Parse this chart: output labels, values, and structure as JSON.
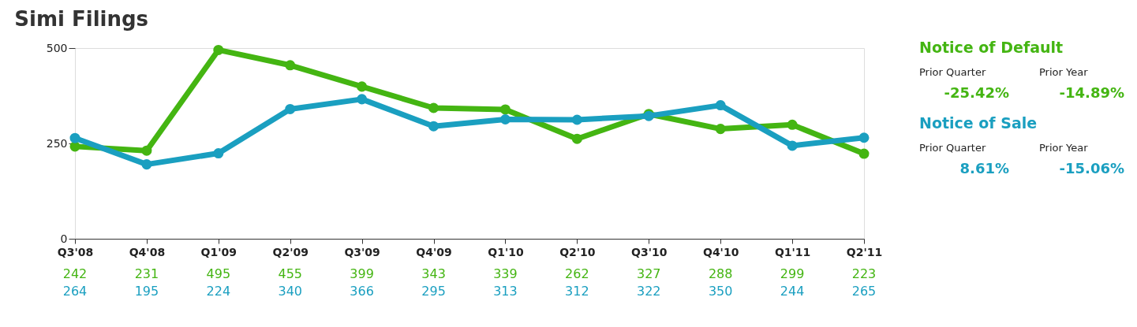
{
  "chart_data": {
    "type": "line",
    "title": "Simi Filings",
    "categories": [
      "Q3'08",
      "Q4'08",
      "Q1'09",
      "Q2'09",
      "Q3'09",
      "Q4'09",
      "Q1'10",
      "Q2'10",
      "Q3'10",
      "Q4'10",
      "Q1'11",
      "Q2'11"
    ],
    "series": [
      {
        "name": "Notice of Default",
        "color": "#44b512",
        "values": [
          242,
          231,
          495,
          455,
          399,
          343,
          339,
          262,
          327,
          288,
          299,
          223
        ]
      },
      {
        "name": "Notice of Sale",
        "color": "#1a9fc0",
        "values": [
          264,
          195,
          224,
          340,
          366,
          295,
          313,
          312,
          322,
          350,
          244,
          265
        ]
      }
    ],
    "annotations": [
      "Prior Quarter",
      "Prior Year",
      "-25.42%",
      "-14.89%",
      "Prior Quarter",
      "Prior Year",
      "8.61%",
      "-15.06%"
    ],
    "ylim": [
      0,
      500
    ],
    "yticks": [
      0,
      250,
      500
    ],
    "grid": false,
    "legend": "right",
    "marker": "circle",
    "line_style": "solid",
    "data_labels": true
  }
}
